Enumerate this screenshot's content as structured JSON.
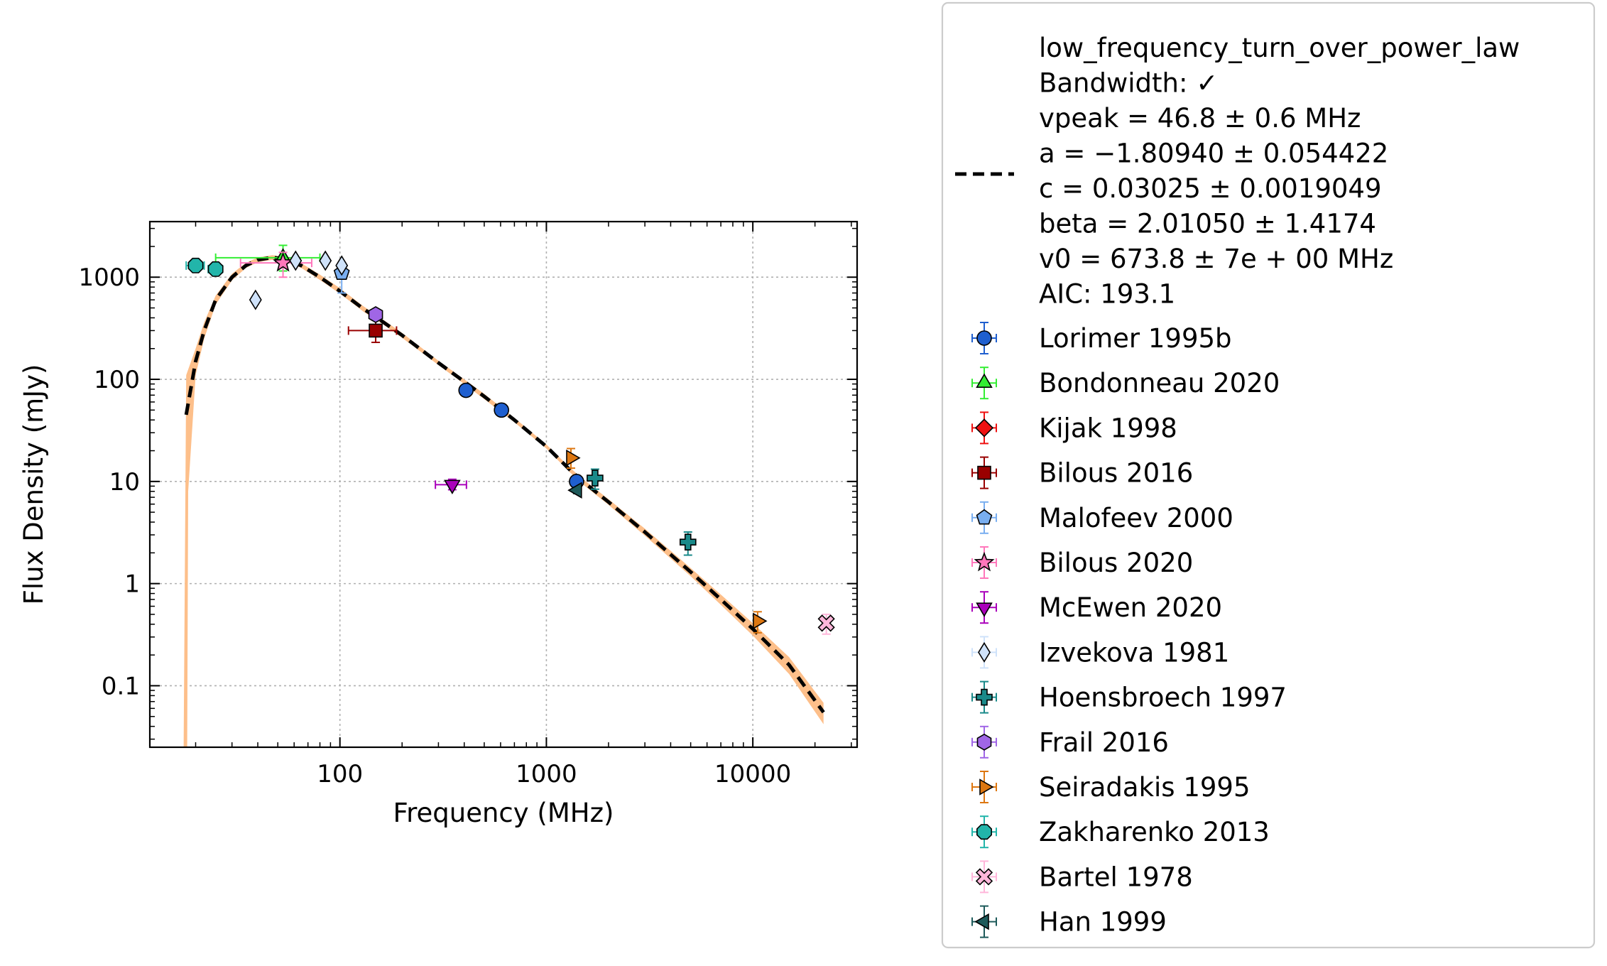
{
  "chart_data": {
    "type": "scatter",
    "xlabel": "Frequency (MHz)",
    "ylabel": "Flux Density (mJy)",
    "xscale": "log",
    "yscale": "log",
    "xlim": [
      12,
      32000
    ],
    "ylim": [
      0.025,
      3500
    ],
    "grid": true,
    "legend_position": "outside-right",
    "x_ticks": [
      {
        "value": 100,
        "label": "100"
      },
      {
        "value": 1000,
        "label": "1000"
      },
      {
        "value": 10000,
        "label": "10000"
      }
    ],
    "y_ticks": [
      {
        "value": 0.1,
        "label": "0.1"
      },
      {
        "value": 1,
        "label": "1"
      },
      {
        "value": 10,
        "label": "10"
      },
      {
        "value": 100,
        "label": "100"
      },
      {
        "value": 1000,
        "label": "1000"
      }
    ],
    "fit": {
      "model_lines": [
        "low_frequency_turn_over_power_law",
        "Bandwidth: ✓",
        "vpeak = 46.8 ± 0.6 MHz",
        "a = −1.80940 ± 0.054422",
        "c = 0.03025 ± 0.0019049",
        "beta = 2.01050 ± 1.4174",
        "v0 = 673.8 ± 7e + 00 MHz",
        "AIC: 193.1"
      ],
      "line_color": "#000000",
      "band_color": "#fdbf8a",
      "curve": [
        [
          18,
          45
        ],
        [
          20,
          150
        ],
        [
          22,
          300
        ],
        [
          25,
          600
        ],
        [
          30,
          1000
        ],
        [
          35,
          1300
        ],
        [
          40,
          1480
        ],
        [
          47,
          1560
        ],
        [
          55,
          1500
        ],
        [
          65,
          1300
        ],
        [
          80,
          1000
        ],
        [
          100,
          730
        ],
        [
          130,
          490
        ],
        [
          160,
          370
        ],
        [
          200,
          270
        ],
        [
          300,
          145
        ],
        [
          400,
          95
        ],
        [
          500,
          68
        ],
        [
          700,
          40
        ],
        [
          1000,
          22
        ],
        [
          1300,
          13
        ],
        [
          1500,
          10
        ],
        [
          2000,
          6.3
        ],
        [
          3000,
          3.2
        ],
        [
          5000,
          1.3
        ],
        [
          7000,
          0.7
        ],
        [
          10000,
          0.36
        ],
        [
          15000,
          0.16
        ],
        [
          22000,
          0.055
        ]
      ],
      "band_upper": [
        [
          18,
          110
        ],
        [
          20,
          200
        ],
        [
          22,
          360
        ],
        [
          25,
          660
        ],
        [
          30,
          1080
        ],
        [
          35,
          1380
        ],
        [
          40,
          1560
        ],
        [
          47,
          1640
        ],
        [
          55,
          1580
        ],
        [
          65,
          1370
        ],
        [
          80,
          1060
        ],
        [
          100,
          780
        ],
        [
          130,
          520
        ],
        [
          160,
          390
        ],
        [
          200,
          285
        ],
        [
          300,
          152
        ],
        [
          400,
          100
        ],
        [
          500,
          72
        ],
        [
          700,
          42
        ],
        [
          1000,
          23
        ],
        [
          1300,
          13.7
        ],
        [
          1500,
          10.6
        ],
        [
          2000,
          6.7
        ],
        [
          3000,
          3.45
        ],
        [
          5000,
          1.42
        ],
        [
          7000,
          0.78
        ],
        [
          10000,
          0.41
        ],
        [
          15000,
          0.19
        ],
        [
          22000,
          0.068
        ]
      ],
      "band_lower": [
        [
          17.5,
          0.025
        ],
        [
          18.2,
          0.025
        ],
        [
          18.4,
          8
        ],
        [
          20,
          110
        ],
        [
          22,
          250
        ],
        [
          25,
          540
        ],
        [
          30,
          930
        ],
        [
          35,
          1230
        ],
        [
          40,
          1400
        ],
        [
          47,
          1480
        ],
        [
          55,
          1420
        ],
        [
          65,
          1230
        ],
        [
          80,
          940
        ],
        [
          100,
          690
        ],
        [
          130,
          460
        ],
        [
          160,
          350
        ],
        [
          200,
          255
        ],
        [
          300,
          138
        ],
        [
          400,
          90
        ],
        [
          500,
          64
        ],
        [
          700,
          38
        ],
        [
          1000,
          21
        ],
        [
          1300,
          12.3
        ],
        [
          1500,
          9.4
        ],
        [
          2000,
          5.9
        ],
        [
          3000,
          2.95
        ],
        [
          5000,
          1.18
        ],
        [
          7000,
          0.62
        ],
        [
          10000,
          0.31
        ],
        [
          15000,
          0.13
        ],
        [
          22000,
          0.042
        ]
      ]
    },
    "series": [
      {
        "name": "Lorimer 1995b",
        "marker": "circle",
        "color": "#1f5fcf",
        "points": [
          {
            "x": 408,
            "y": 78,
            "ylo": 72,
            "yhi": 84
          },
          {
            "x": 606,
            "y": 50,
            "ylo": 46,
            "yhi": 54
          },
          {
            "x": 1400,
            "y": 10,
            "ylo": 9.3,
            "yhi": 10.7
          }
        ]
      },
      {
        "name": "Bondonneau 2020",
        "marker": "triangle-up",
        "color": "#33ee33",
        "points": [
          {
            "x": 53,
            "y": 1550,
            "xlo": 25,
            "xhi": 80,
            "ylo": 1150,
            "yhi": 2050
          }
        ]
      },
      {
        "name": "Kijak 1998",
        "marker": "diamond",
        "color": "#ee1111",
        "points": []
      },
      {
        "name": "Bilous 2016",
        "marker": "square",
        "color": "#990000",
        "points": [
          {
            "x": 149,
            "y": 300,
            "xlo": 110,
            "xhi": 188,
            "ylo": 230,
            "yhi": 380
          }
        ]
      },
      {
        "name": "Malofeev 2000",
        "marker": "pentagon",
        "color": "#79aef0",
        "points": [
          {
            "x": 102,
            "y": 1100,
            "ylo": 700,
            "yhi": 1350
          }
        ]
      },
      {
        "name": "Bilous 2020",
        "marker": "star",
        "color": "#ff77bb",
        "points": [
          {
            "x": 53,
            "y": 1380,
            "xlo": 33,
            "xhi": 73,
            "ylo": 1000,
            "yhi": 1750
          }
        ]
      },
      {
        "name": "McEwen 2020",
        "marker": "triangle-down",
        "color": "#aa00bb",
        "points": [
          {
            "x": 350,
            "y": 9.3,
            "xlo": 290,
            "xhi": 410,
            "ylo": 8.3,
            "yhi": 10.5
          }
        ]
      },
      {
        "name": "Izvekova 1981",
        "marker": "thin-diamond",
        "color": "#cfe2fa",
        "points": [
          {
            "x": 39,
            "y": 600
          },
          {
            "x": 61,
            "y": 1450
          },
          {
            "x": 85,
            "y": 1450
          },
          {
            "x": 102,
            "y": 1300
          }
        ]
      },
      {
        "name": "Hoensbroech 1997",
        "marker": "plus",
        "color": "#1a8a8a",
        "points": [
          {
            "x": 1720,
            "y": 10.8,
            "ylo": 8.4,
            "yhi": 13.2
          },
          {
            "x": 4850,
            "y": 2.55,
            "ylo": 1.9,
            "yhi": 3.2
          }
        ]
      },
      {
        "name": "Frail 2016",
        "marker": "hexagon",
        "color": "#a066e6",
        "points": [
          {
            "x": 149,
            "y": 430,
            "ylo": 400,
            "yhi": 460
          }
        ]
      },
      {
        "name": "Seiradakis 1995",
        "marker": "triangle-right",
        "color": "#dd7711",
        "points": [
          {
            "x": 1315,
            "y": 17,
            "ylo": 13.5,
            "yhi": 21
          },
          {
            "x": 10550,
            "y": 0.43,
            "ylo": 0.33,
            "yhi": 0.53
          }
        ]
      },
      {
        "name": "Zakharenko 2013",
        "marker": "octagon",
        "color": "#22b5aa",
        "points": [
          {
            "x": 20,
            "y": 1300,
            "xlo": 18,
            "xhi": 22,
            "ylo": 1200,
            "yhi": 1400
          },
          {
            "x": 25,
            "y": 1200,
            "xlo": 23,
            "xhi": 27,
            "ylo": 1100,
            "yhi": 1300
          }
        ]
      },
      {
        "name": "Bartel 1978",
        "marker": "x-filled",
        "color": "#ffb6da",
        "points": [
          {
            "x": 22700,
            "y": 0.41,
            "ylo": 0.32,
            "yhi": 0.5
          }
        ]
      },
      {
        "name": "Han 1999",
        "marker": "triangle-left",
        "color": "#1d5a5a",
        "points": [
          {
            "x": 1410,
            "y": 8.2,
            "ylo": 7.6,
            "yhi": 8.8
          }
        ]
      }
    ]
  }
}
